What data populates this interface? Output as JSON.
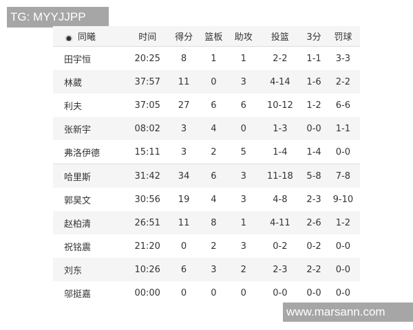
{
  "watermarks": {
    "top": "TG: MYYJJPP",
    "bottom": "www.marsann.com"
  },
  "team": {
    "name": "同曦",
    "logo_icon": "team-logo-icon"
  },
  "headers": [
    "时间",
    "得分",
    "篮板",
    "助攻",
    "投篮",
    "3分",
    "罚球"
  ],
  "rows": [
    [
      "田宇恒",
      "20:25",
      "8",
      "1",
      "1",
      "2-2",
      "1-1",
      "3-3"
    ],
    [
      "林葳",
      "37:57",
      "11",
      "0",
      "3",
      "4-14",
      "1-6",
      "2-2"
    ],
    [
      "利夫",
      "37:05",
      "27",
      "6",
      "6",
      "10-12",
      "1-2",
      "6-6"
    ],
    [
      "张新宇",
      "08:02",
      "3",
      "4",
      "0",
      "1-3",
      "0-0",
      "1-1"
    ],
    [
      "弗洛伊德",
      "15:11",
      "3",
      "2",
      "5",
      "1-4",
      "1-4",
      "0-0"
    ],
    [
      "哈里斯",
      "31:42",
      "34",
      "6",
      "3",
      "11-18",
      "5-8",
      "7-8"
    ],
    [
      "郭昊文",
      "30:56",
      "19",
      "4",
      "3",
      "4-8",
      "2-3",
      "9-10"
    ],
    [
      "赵柏清",
      "26:51",
      "11",
      "8",
      "1",
      "4-11",
      "2-6",
      "1-2"
    ],
    [
      "祝铭震",
      "21:20",
      "0",
      "2",
      "3",
      "0-2",
      "0-2",
      "0-0"
    ],
    [
      "刘东",
      "10:26",
      "6",
      "3",
      "2",
      "2-3",
      "2-2",
      "0-0"
    ],
    [
      "邬挺嘉",
      "00:00",
      "0",
      "0",
      "0",
      "0-0",
      "0-0",
      "0-0"
    ]
  ]
}
